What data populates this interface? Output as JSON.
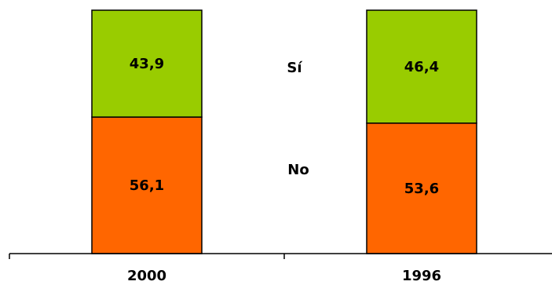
{
  "chart_data": {
    "type": "bar",
    "stacked": true,
    "percent": true,
    "categories": [
      "2000",
      "1996"
    ],
    "series": [
      {
        "name": "No",
        "values": [
          56.1,
          53.6
        ],
        "labels": [
          "56,1",
          "53,6"
        ],
        "color": "#ff6600"
      },
      {
        "name": "Sí",
        "values": [
          43.9,
          46.4
        ],
        "labels": [
          "43,9",
          "46,4"
        ],
        "color": "#99cc00"
      }
    ],
    "ylim": [
      0,
      100
    ],
    "grid": false,
    "legend": "center-between-bars"
  }
}
